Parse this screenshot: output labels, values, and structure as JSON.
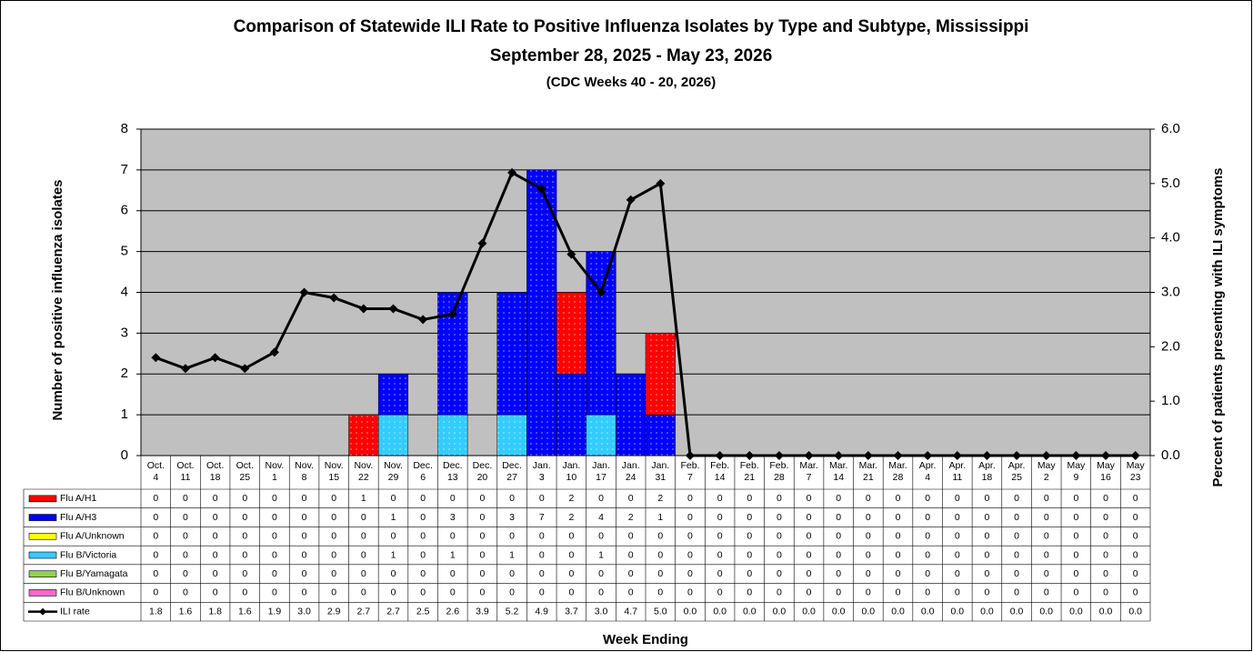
{
  "chart_data": {
    "type": "bar",
    "stacked": true,
    "title": "Comparison of Statewide ILI Rate to Positive Influenza Isolates by Type and Subtype, Mississippi",
    "subtitle": "September 28, 2025 - May 23, 2026",
    "subtitle2": "(CDC Weeks 40 - 20, 2026)",
    "y_label": "Number of positive influenza isolates",
    "y2_label": "Percent of patients presenting with ILI symptoms",
    "x_label": "Week Ending",
    "background": "#c0c0c0",
    "grid": true,
    "categories": [
      "Oct. 4",
      "Oct. 11",
      "Oct. 18",
      "Oct. 25",
      "Nov. 1",
      "Nov. 8",
      "Nov. 15",
      "Nov. 22",
      "Nov. 29",
      "Dec. 6",
      "Dec. 13",
      "Dec. 20",
      "Dec. 27",
      "Jan. 3",
      "Jan. 10",
      "Jan. 17",
      "Jan. 24",
      "Jan. 31",
      "Feb. 7",
      "Feb. 14",
      "Feb. 21",
      "Feb. 28",
      "Mar. 7",
      "Mar. 14",
      "Mar. 21",
      "Mar. 28",
      "Apr. 4",
      "Apr. 11",
      "Apr. 18",
      "Apr. 25",
      "May 2",
      "May 9",
      "May 16",
      "May 23"
    ],
    "ylim": [
      0,
      8
    ],
    "yticks": [
      0,
      1,
      2,
      3,
      4,
      5,
      6,
      7,
      8
    ],
    "y2lim": [
      0,
      6
    ],
    "y2ticks": [
      {
        "value": 0,
        "label": "0.0"
      },
      {
        "value": 1,
        "label": "1.0"
      },
      {
        "value": 2,
        "label": "2.0"
      },
      {
        "value": 3,
        "label": "3.0"
      },
      {
        "value": 4,
        "label": "4.0"
      },
      {
        "value": 5,
        "label": "5.0"
      },
      {
        "value": 6,
        "label": "6.0"
      }
    ],
    "series": [
      {
        "name": "Flu A/H1",
        "color": "#ff0000",
        "values": [
          0,
          0,
          0,
          0,
          0,
          0,
          0,
          1,
          0,
          0,
          0,
          0,
          0,
          0,
          2,
          0,
          0,
          2,
          0,
          0,
          0,
          0,
          0,
          0,
          0,
          0,
          0,
          0,
          0,
          0,
          0,
          0,
          0,
          0
        ]
      },
      {
        "name": "Flu A/H3",
        "color": "#0000ff",
        "values": [
          0,
          0,
          0,
          0,
          0,
          0,
          0,
          0,
          1,
          0,
          3,
          0,
          3,
          7,
          2,
          4,
          2,
          1,
          0,
          0,
          0,
          0,
          0,
          0,
          0,
          0,
          0,
          0,
          0,
          0,
          0,
          0,
          0,
          0
        ]
      },
      {
        "name": "Flu A/Unknown",
        "color": "#ffff00",
        "values": [
          0,
          0,
          0,
          0,
          0,
          0,
          0,
          0,
          0,
          0,
          0,
          0,
          0,
          0,
          0,
          0,
          0,
          0,
          0,
          0,
          0,
          0,
          0,
          0,
          0,
          0,
          0,
          0,
          0,
          0,
          0,
          0,
          0,
          0
        ]
      },
      {
        "name": "Flu B/Victoria",
        "color": "#33ccff",
        "values": [
          0,
          0,
          0,
          0,
          0,
          0,
          0,
          0,
          1,
          0,
          1,
          0,
          1,
          0,
          0,
          1,
          0,
          0,
          0,
          0,
          0,
          0,
          0,
          0,
          0,
          0,
          0,
          0,
          0,
          0,
          0,
          0,
          0,
          0
        ]
      },
      {
        "name": "Flu B/Yamagata",
        "color": "#92d050",
        "values": [
          0,
          0,
          0,
          0,
          0,
          0,
          0,
          0,
          0,
          0,
          0,
          0,
          0,
          0,
          0,
          0,
          0,
          0,
          0,
          0,
          0,
          0,
          0,
          0,
          0,
          0,
          0,
          0,
          0,
          0,
          0,
          0,
          0,
          0
        ]
      },
      {
        "name": "Flu B/Unknown",
        "color": "#ff66cc",
        "values": [
          0,
          0,
          0,
          0,
          0,
          0,
          0,
          0,
          0,
          0,
          0,
          0,
          0,
          0,
          0,
          0,
          0,
          0,
          0,
          0,
          0,
          0,
          0,
          0,
          0,
          0,
          0,
          0,
          0,
          0,
          0,
          0,
          0,
          0
        ]
      },
      {
        "name": "ILI rate",
        "type": "line",
        "axis": "y2",
        "color": "#000000",
        "values": [
          1.8,
          1.6,
          1.8,
          1.6,
          1.9,
          3.0,
          2.9,
          2.7,
          2.7,
          2.5,
          2.6,
          3.9,
          5.2,
          4.9,
          3.7,
          3.0,
          4.7,
          5.0,
          0,
          0,
          0,
          0,
          0,
          0,
          0,
          0,
          0,
          0,
          0,
          0,
          0,
          0,
          0,
          0
        ],
        "value_labels": [
          "1.8",
          "1.6",
          "1.8",
          "1.6",
          "1.9",
          "3.0",
          "2.9",
          "2.7",
          "2.7",
          "2.5",
          "2.6",
          "3.9",
          "5.2",
          "4.9",
          "3.7",
          "3.0",
          "4.7",
          "5.0",
          "0.0",
          "0.0",
          "0.0",
          "0.0",
          "0.0",
          "0.0",
          "0.0",
          "0.0",
          "0.0",
          "0.0",
          "0.0",
          "0.0",
          "0.0",
          "0.0",
          "0.0",
          "0.0"
        ]
      }
    ]
  }
}
